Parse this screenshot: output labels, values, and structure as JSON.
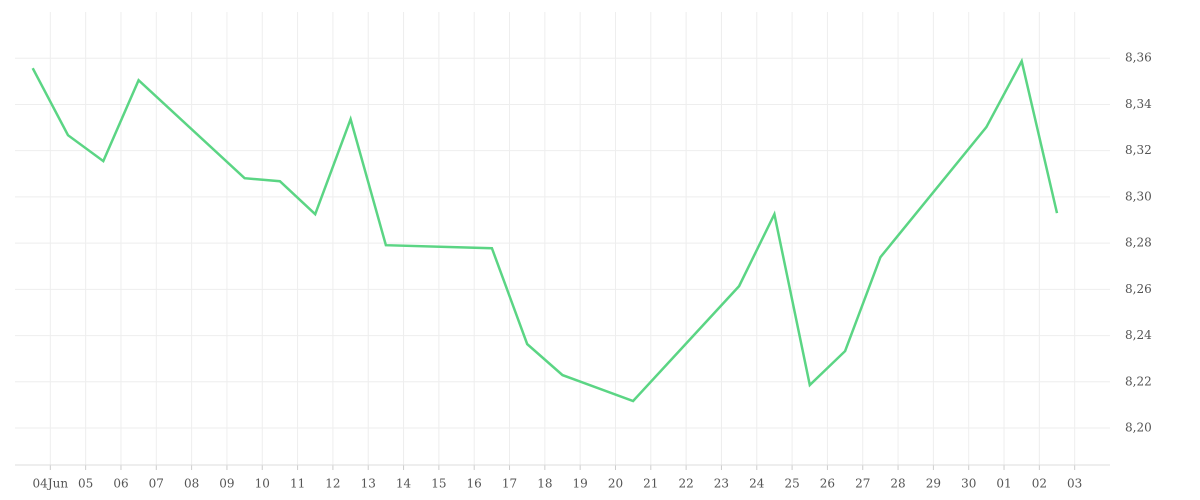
{
  "chart_data": {
    "type": "line",
    "x": [
      3.5,
      4.5,
      5.5,
      6.5,
      9.5,
      10.5,
      11.5,
      12.5,
      13.5,
      16.5,
      17.5,
      18.5,
      20.5,
      23.5,
      24.5,
      25.5,
      26.5,
      27.5,
      30.5,
      31.5,
      32.5
    ],
    "values": [
      8.3557,
      8.3267,
      8.3155,
      8.3505,
      8.3081,
      8.3068,
      8.2925,
      8.3336,
      8.2791,
      8.2778,
      8.2363,
      8.2229,
      8.2117,
      8.2614,
      8.2925,
      8.2186,
      8.2333,
      8.2739,
      8.3302,
      8.3587,
      8.293
    ],
    "color": "#5bd584",
    "xlim": [
      3,
      34
    ],
    "xticks": [
      {
        "value": 4,
        "label": "04Jun"
      },
      {
        "value": 5,
        "label": "05"
      },
      {
        "value": 6,
        "label": "06"
      },
      {
        "value": 7,
        "label": "07"
      },
      {
        "value": 8,
        "label": "08"
      },
      {
        "value": 9,
        "label": "09"
      },
      10,
      11,
      12,
      13,
      14,
      15,
      16,
      17,
      18,
      19,
      20,
      21,
      22,
      23,
      24,
      25,
      26,
      27,
      28,
      29,
      30,
      {
        "value": 31,
        "label": "01"
      },
      {
        "value": 32,
        "label": "02"
      },
      {
        "value": 33,
        "label": "03"
      }
    ],
    "ylim": [
      8.184,
      8.38
    ],
    "yticks": [
      {
        "value": 8.2,
        "label": "8,20"
      },
      {
        "value": 8.22,
        "label": "8,22"
      },
      {
        "value": 8.24,
        "label": "8,24"
      },
      {
        "value": 8.26,
        "label": "8,26"
      },
      {
        "value": 8.28,
        "label": "8,28"
      },
      {
        "value": 8.3,
        "label": "8,30"
      },
      {
        "value": 8.32,
        "label": "8,32"
      },
      {
        "value": 8.34,
        "label": "8,34"
      },
      {
        "value": 8.36,
        "label": "8,36"
      }
    ],
    "grid": true
  }
}
